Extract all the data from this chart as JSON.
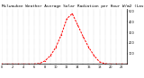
{
  "title": "Milwaukee Weather Average Solar Radiation per Hour W/m2 (Last 24 Hours)",
  "hours": [
    0,
    1,
    2,
    3,
    4,
    5,
    6,
    7,
    8,
    9,
    10,
    11,
    12,
    13,
    14,
    15,
    16,
    17,
    18,
    19,
    20,
    21,
    22,
    23
  ],
  "values": [
    0,
    0,
    0,
    0,
    0,
    0,
    0,
    5,
    30,
    80,
    160,
    280,
    430,
    480,
    370,
    260,
    160,
    80,
    20,
    3,
    0,
    0,
    0,
    0
  ],
  "line_color": "#ff0000",
  "bg_color": "#ffffff",
  "plot_bg_color": "#ffffff",
  "grid_color": "#aaaaaa",
  "text_color": "#000000",
  "spine_color": "#000000",
  "ylim": [
    0,
    520
  ],
  "xlim": [
    0,
    23
  ],
  "yticks": [
    100,
    200,
    300,
    400,
    500
  ],
  "xticks": [
    0,
    1,
    2,
    3,
    4,
    5,
    6,
    7,
    8,
    9,
    10,
    11,
    12,
    13,
    14,
    15,
    16,
    17,
    18,
    19,
    20,
    21,
    22,
    23
  ],
  "title_fontsize": 3.2,
  "tick_fontsize": 2.5,
  "line_width": 0.7,
  "marker_size": 1.2
}
